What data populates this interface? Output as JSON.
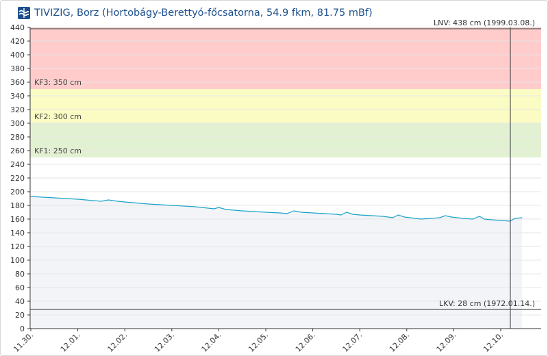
{
  "header": {
    "title": "TIVIZIG, Borz (Hortobágy-Berettyó-főcsatorna, 54.9 fkm, 81.75 mBf)",
    "logo_icon": "tivizig-logo-icon"
  },
  "chart_data": {
    "type": "line",
    "title": "",
    "xlabel": "",
    "ylabel": "",
    "ylim": [
      0,
      440
    ],
    "yticks": [
      0,
      20,
      40,
      60,
      80,
      100,
      120,
      140,
      160,
      180,
      200,
      220,
      240,
      260,
      280,
      300,
      320,
      340,
      360,
      380,
      400,
      420,
      440
    ],
    "x_ticks": [
      "11.30.",
      "12.01.",
      "12.02.",
      "12.03.",
      "12.04.",
      "12.05.",
      "12.06.",
      "12.07.",
      "12.08.",
      "12.09.",
      "12.10."
    ],
    "grid": true,
    "bands": [
      {
        "label": "KF1: 250 cm",
        "from": 250,
        "to": 300,
        "color": "#e3f1d3"
      },
      {
        "label": "KF2: 300 cm",
        "from": 300,
        "to": 350,
        "color": "#fafcc4"
      },
      {
        "label": "KF3: 350 cm",
        "from": 350,
        "to": 440,
        "color": "#ffcbcb"
      }
    ],
    "reference_lines": [
      {
        "label": "LNV: 438 cm (1999.03.08.)",
        "value": 438
      },
      {
        "label": "LKV: 28 cm (1972.01.14.)",
        "value": 28
      }
    ],
    "series": [
      {
        "color": "#1aa3c8",
        "area_color": "#f2f4f8",
        "x": [
          0,
          0.5,
          1,
          1.5,
          1.65,
          1.85,
          2,
          2.5,
          3,
          3.5,
          3.9,
          4.0,
          4.15,
          4.5,
          5,
          5.3,
          5.45,
          5.6,
          5.75,
          6,
          6.5,
          6.6,
          6.72,
          6.85,
          7,
          7.5,
          7.7,
          7.82,
          7.95,
          8.3,
          8.5,
          8.7,
          8.82,
          8.95,
          9.2,
          9.4,
          9.55,
          9.65,
          9.8,
          10.0,
          10.2,
          10.3,
          10.45
        ],
        "y": [
          193,
          191,
          189,
          186,
          188,
          186,
          185,
          182,
          180,
          178,
          175,
          177,
          174,
          172,
          170,
          169,
          168,
          172,
          170,
          169,
          167,
          166,
          170,
          167,
          166,
          164,
          162,
          166,
          163,
          160,
          161,
          162,
          165,
          163,
          161,
          160,
          164,
          160,
          159,
          158,
          157,
          161,
          162
        ]
      }
    ]
  }
}
